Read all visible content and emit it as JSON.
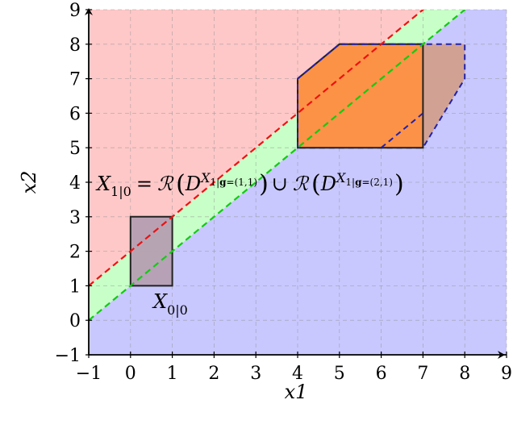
{
  "chart_data": {
    "type": "area",
    "xlim": [
      -1,
      9
    ],
    "ylim": [
      -1,
      9
    ],
    "xticks": [
      "−1",
      "0",
      "1",
      "2",
      "3",
      "4",
      "5",
      "6",
      "7",
      "8",
      "9"
    ],
    "yticks": [
      "−1",
      "0",
      "1",
      "2",
      "3",
      "4",
      "5",
      "6",
      "7",
      "8",
      "9"
    ],
    "xlabel": "x1",
    "ylabel": "x2",
    "grid": true,
    "colors": {
      "upper_region": "#ffc8c8",
      "band_region": "#c8ffc8",
      "lower_region": "#c8c8ff",
      "upper_line": "#ee1111",
      "lower_line": "#11cc11",
      "small_box": "#b59fb2",
      "orange_set": "#ff9040",
      "brown_set": "#d2a08d",
      "dashed_outline": "#2222aa"
    },
    "regions": [
      {
        "name": "upper",
        "boundary": "x2 = x1 + 2"
      },
      {
        "name": "band",
        "between": [
          "x2 = x1 + 2",
          "x2 = x1 + 1"
        ]
      },
      {
        "name": "lower",
        "boundary": "x2 = x1 + 1"
      }
    ],
    "lines": [
      {
        "name": "upper-line",
        "slope": 1,
        "intercept": 2,
        "style": "dashed"
      },
      {
        "name": "lower-line",
        "slope": 1,
        "intercept": 1,
        "style": "dashed"
      }
    ],
    "polygons": [
      {
        "name": "X00",
        "points": [
          [
            0,
            1
          ],
          [
            1,
            1
          ],
          [
            1,
            3
          ],
          [
            0,
            3
          ]
        ],
        "style": "solid"
      },
      {
        "name": "D-21",
        "points": [
          [
            5,
            8
          ],
          [
            8,
            8
          ],
          [
            8,
            7
          ],
          [
            7,
            5
          ],
          [
            4,
            5
          ],
          [
            4,
            7
          ]
        ],
        "style": "dashed"
      },
      {
        "name": "D-11",
        "points": [
          [
            4,
            5
          ],
          [
            7,
            5
          ],
          [
            7,
            8
          ],
          [
            5,
            8
          ],
          [
            4,
            7
          ]
        ],
        "style": "solid"
      },
      {
        "name": "dashed-edges",
        "points": [
          [
            4,
            5
          ],
          [
            4,
            7
          ],
          [
            5,
            8
          ],
          [
            7,
            8
          ]
        ],
        "style": "dashed"
      },
      {
        "name": "dashed-edge-lower",
        "points": [
          [
            6,
            5
          ],
          [
            7,
            6
          ]
        ],
        "style": "dashed"
      }
    ],
    "annotations": {
      "x00": {
        "base": "X",
        "sub": "0|0"
      },
      "x10": {
        "lhs_base": "X",
        "lhs_sub": "1|0",
        "eq": "=",
        "calR": "ℛ",
        "D": "D",
        "sup_base": "X",
        "sup_sub1": "1|",
        "sup_g": "g",
        "sup_sub2a": "=(1,1)",
        "sup_sub2b": "=(2,1)",
        "union": "∪"
      }
    }
  }
}
